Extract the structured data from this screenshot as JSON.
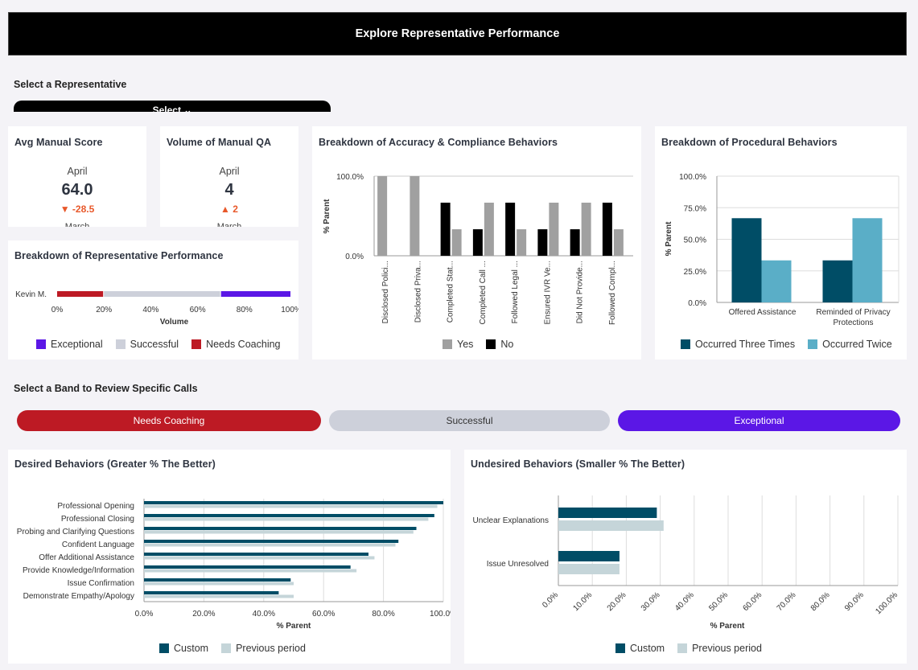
{
  "header": {
    "title": "Explore Representative Performance"
  },
  "rep_select": {
    "label": "Select a Representative",
    "value": "Select ⌄"
  },
  "kpi_avg": {
    "title": "Avg Manual Score",
    "month": "April",
    "value": "64.0",
    "delta": "▼ -28.5",
    "more": "March"
  },
  "kpi_volume": {
    "title": "Volume of Manual QA",
    "month": "April",
    "value": "4",
    "delta": "▲ 2",
    "more": "March"
  },
  "colors": {
    "accent_red": "#bd1a24",
    "success_grey": "#cdd0da",
    "exceptional_purple": "#5b17e6",
    "teal_dark": "#004d66",
    "teal_light": "#5aaec7",
    "bar_grey": "#a0a0a0",
    "bar_black": "#000000",
    "prev_period": "#c5d5d9"
  },
  "rep_performance": {
    "title": "Breakdown of Representative Performance",
    "row_label": "Kevin M.",
    "x_ticks": [
      "0%",
      "20%",
      "40%",
      "60%",
      "80%",
      "100%"
    ],
    "x_label": "Volume",
    "legend": [
      "Exceptional",
      "Successful",
      "Needs Coaching"
    ]
  },
  "accuracy": {
    "title": "Breakdown of Accuracy & Compliance Behaviors",
    "y_label": "% Parent",
    "y_ticks": [
      "100.0%",
      "0.0%"
    ],
    "legend": [
      "Yes",
      "No"
    ]
  },
  "procedural": {
    "title": "Breakdown of Procedural Behaviors",
    "y_label": "% Parent",
    "y_ticks": [
      "100.0%",
      "75.0%",
      "50.0%",
      "25.0%",
      "0.0%"
    ],
    "legend": [
      "Occurred Three Times",
      "Occurred Twice"
    ]
  },
  "band_section": {
    "label": "Select a Band to Review Specific Calls",
    "buttons": [
      "Needs Coaching",
      "Successful",
      "Exceptional"
    ]
  },
  "desired": {
    "title": "Desired Behaviors (Greater % The Better)",
    "x_label": "% Parent",
    "x_ticks": [
      "0.0%",
      "20.0%",
      "40.0%",
      "60.0%",
      "80.0%",
      "100.0%"
    ],
    "legend": [
      "Custom",
      "Previous period"
    ]
  },
  "undesired": {
    "title": "Undesired Behaviors (Smaller % The Better)",
    "x_label": "% Parent",
    "x_ticks": [
      "0.0%",
      "10.0%",
      "20.0%",
      "30.0%",
      "40.0%",
      "50.0%",
      "60.0%",
      "70.0%",
      "80.0%",
      "90.0%",
      "100.0%"
    ],
    "legend": [
      "Custom",
      "Previous period"
    ]
  },
  "chart_data": [
    {
      "id": "rep_performance",
      "type": "bar",
      "orientation": "horizontal-stacked",
      "categories": [
        "Kevin M."
      ],
      "series": [
        {
          "name": "Needs Coaching",
          "values": [
            20
          ]
        },
        {
          "name": "Successful",
          "values": [
            50
          ]
        },
        {
          "name": "Exceptional",
          "values": [
            30
          ]
        }
      ],
      "xlabel": "Volume",
      "xlim": [
        0,
        100
      ]
    },
    {
      "id": "accuracy",
      "type": "bar",
      "categories": [
        "Disclosed Polici...",
        "Disclosed Priva...",
        "Completed Stat...",
        "Completed Call ...",
        "Followed Legal ...",
        "Ensured IVR Ve...",
        "Did Not Provide...",
        "Followed Compl..."
      ],
      "series": [
        {
          "name": "Yes",
          "values": [
            100,
            100,
            33.3,
            66.7,
            33.3,
            66.7,
            66.7,
            33.3
          ]
        },
        {
          "name": "No",
          "values": [
            0,
            0,
            66.7,
            33.3,
            66.7,
            33.3,
            33.3,
            66.7
          ]
        }
      ],
      "ylabel": "% Parent",
      "ylim": [
        0,
        100
      ]
    },
    {
      "id": "procedural",
      "type": "bar",
      "categories": [
        "Offered Assistance",
        "Reminded of Privacy Protections"
      ],
      "series": [
        {
          "name": "Occurred Three Times",
          "values": [
            66.7,
            33.3
          ]
        },
        {
          "name": "Occurred Twice",
          "values": [
            33.3,
            66.7
          ]
        }
      ],
      "ylabel": "% Parent",
      "ylim": [
        0,
        100
      ]
    },
    {
      "id": "desired",
      "type": "bar",
      "orientation": "horizontal",
      "categories": [
        "Professional Opening",
        "Professional Closing",
        "Probing and Clarifying Questions",
        "Confident Language",
        "Offer Additional Assistance",
        "Provide Knowledge/Information",
        "Issue Confirmation",
        "Demonstrate Empathy/Apology"
      ],
      "series": [
        {
          "name": "Custom",
          "values": [
            100,
            97,
            91,
            85,
            75,
            69,
            49,
            45
          ]
        },
        {
          "name": "Previous period",
          "values": [
            98,
            95,
            90,
            84,
            77,
            71,
            50,
            50
          ]
        }
      ],
      "xlabel": "% Parent",
      "xlim": [
        0,
        100
      ]
    },
    {
      "id": "undesired",
      "type": "bar",
      "orientation": "horizontal",
      "categories": [
        "Unclear Explanations",
        "Issue Unresolved"
      ],
      "series": [
        {
          "name": "Custom",
          "values": [
            29,
            18
          ]
        },
        {
          "name": "Previous period",
          "values": [
            31,
            18
          ]
        }
      ],
      "xlabel": "% Parent",
      "xlim": [
        0,
        100
      ]
    }
  ]
}
